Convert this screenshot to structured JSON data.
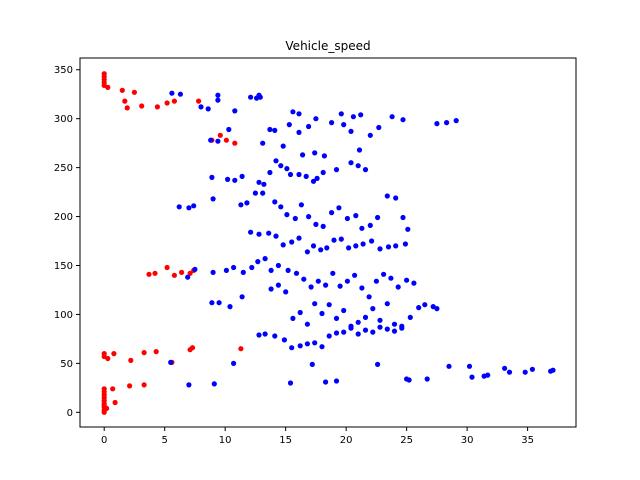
{
  "chart_data": {
    "type": "scatter",
    "title": "Vehicle_speed",
    "xlabel": "",
    "ylabel": "",
    "xlim": [
      -2,
      39
    ],
    "ylim": [
      -15,
      362
    ],
    "xticks": [
      0,
      5,
      10,
      15,
      20,
      25,
      30,
      35
    ],
    "yticks": [
      0,
      50,
      100,
      150,
      200,
      250,
      300,
      350
    ],
    "grid": false,
    "series": [
      {
        "color": "#ff0000",
        "points": [
          [
            0,
            346
          ],
          [
            0,
            343
          ],
          [
            0,
            340
          ],
          [
            0,
            337
          ],
          [
            0,
            334
          ],
          [
            0.3,
            332
          ],
          [
            1.5,
            329
          ],
          [
            2.5,
            327
          ],
          [
            1.7,
            318
          ],
          [
            3.1,
            313
          ],
          [
            1.9,
            311
          ],
          [
            4.4,
            312
          ],
          [
            5.2,
            316
          ],
          [
            5.8,
            318
          ],
          [
            7.8,
            318
          ],
          [
            9.6,
            283
          ],
          [
            8.9,
            278
          ],
          [
            10.1,
            278
          ],
          [
            10.8,
            275
          ],
          [
            3.7,
            141
          ],
          [
            4.2,
            142
          ],
          [
            5.2,
            148
          ],
          [
            5.8,
            140
          ],
          [
            6.4,
            143
          ],
          [
            7.1,
            142
          ],
          [
            7.4,
            145
          ],
          [
            0,
            60
          ],
          [
            0,
            57
          ],
          [
            0.3,
            55
          ],
          [
            0.8,
            60
          ],
          [
            2.2,
            53
          ],
          [
            3.3,
            61
          ],
          [
            4.3,
            62
          ],
          [
            5.6,
            51
          ],
          [
            7.1,
            64
          ],
          [
            7.3,
            66
          ],
          [
            11.3,
            65
          ],
          [
            0,
            24
          ],
          [
            0,
            21
          ],
          [
            0,
            18
          ],
          [
            0,
            15
          ],
          [
            0,
            12
          ],
          [
            0,
            9
          ],
          [
            0,
            7
          ],
          [
            0,
            5
          ],
          [
            0,
            2
          ],
          [
            0,
            0
          ],
          [
            0.2,
            4
          ],
          [
            0.7,
            24
          ],
          [
            0.9,
            10
          ],
          [
            2.1,
            27
          ],
          [
            3.3,
            28
          ]
        ]
      },
      {
        "color": "#0000ff",
        "points": [
          [
            5.6,
            326
          ],
          [
            6.3,
            325
          ],
          [
            8.0,
            312
          ],
          [
            8.6,
            310
          ],
          [
            9.4,
            319
          ],
          [
            9.4,
            324
          ],
          [
            10.8,
            308
          ],
          [
            12.1,
            322
          ],
          [
            12.6,
            321
          ],
          [
            12.8,
            324
          ],
          [
            12.9,
            322
          ],
          [
            15.6,
            307
          ],
          [
            16.1,
            305
          ],
          [
            17.5,
            300
          ],
          [
            19.6,
            305
          ],
          [
            20.6,
            302
          ],
          [
            21.2,
            304
          ],
          [
            23.8,
            302
          ],
          [
            24.7,
            299
          ],
          [
            27.5,
            295
          ],
          [
            28.3,
            296
          ],
          [
            29.1,
            298
          ],
          [
            8.8,
            278
          ],
          [
            9.4,
            277
          ],
          [
            10.3,
            289
          ],
          [
            13.1,
            275
          ],
          [
            13.7,
            289
          ],
          [
            14.1,
            288
          ],
          [
            14.8,
            272
          ],
          [
            15.3,
            294
          ],
          [
            16.1,
            286
          ],
          [
            16.4,
            263
          ],
          [
            16.9,
            292
          ],
          [
            17.4,
            265
          ],
          [
            18.2,
            262
          ],
          [
            18.8,
            296
          ],
          [
            19.8,
            294
          ],
          [
            20.4,
            287
          ],
          [
            21.1,
            268
          ],
          [
            22.0,
            283
          ],
          [
            22.7,
            291
          ],
          [
            8.9,
            240
          ],
          [
            10.2,
            238
          ],
          [
            10.8,
            237
          ],
          [
            11.4,
            241
          ],
          [
            12.8,
            235
          ],
          [
            13.2,
            233
          ],
          [
            13.7,
            245
          ],
          [
            14.2,
            257
          ],
          [
            14.6,
            252
          ],
          [
            15.1,
            249
          ],
          [
            15.4,
            243
          ],
          [
            16.1,
            243
          ],
          [
            16.7,
            241
          ],
          [
            17.3,
            236
          ],
          [
            17.6,
            239
          ],
          [
            18.1,
            245
          ],
          [
            19.2,
            248
          ],
          [
            20.4,
            255
          ],
          [
            21.0,
            252
          ],
          [
            21.6,
            248
          ],
          [
            6.2,
            210
          ],
          [
            7.0,
            209
          ],
          [
            7.4,
            211
          ],
          [
            9.0,
            218
          ],
          [
            11.3,
            212
          ],
          [
            11.8,
            214
          ],
          [
            12.5,
            224
          ],
          [
            13.1,
            224
          ],
          [
            14.1,
            215
          ],
          [
            14.6,
            210
          ],
          [
            15.1,
            202
          ],
          [
            15.8,
            198
          ],
          [
            16.3,
            212
          ],
          [
            16.9,
            200
          ],
          [
            17.5,
            192
          ],
          [
            18.1,
            190
          ],
          [
            18.8,
            204
          ],
          [
            19.4,
            209
          ],
          [
            20.1,
            198
          ],
          [
            20.8,
            201
          ],
          [
            21.3,
            188
          ],
          [
            22.0,
            191
          ],
          [
            22.6,
            199
          ],
          [
            23.4,
            221
          ],
          [
            24.1,
            219
          ],
          [
            24.7,
            199
          ],
          [
            25.1,
            187
          ],
          [
            12.1,
            184
          ],
          [
            12.8,
            182
          ],
          [
            13.6,
            183
          ],
          [
            14.2,
            180
          ],
          [
            14.8,
            171
          ],
          [
            15.5,
            174
          ],
          [
            16.1,
            178
          ],
          [
            16.8,
            164
          ],
          [
            17.3,
            170
          ],
          [
            17.9,
            166
          ],
          [
            18.4,
            168
          ],
          [
            19.0,
            176
          ],
          [
            19.6,
            177
          ],
          [
            20.2,
            168
          ],
          [
            20.8,
            170
          ],
          [
            21.4,
            172
          ],
          [
            22.1,
            175
          ],
          [
            22.8,
            167
          ],
          [
            23.5,
            169
          ],
          [
            24.1,
            170
          ],
          [
            24.9,
            172
          ],
          [
            6.9,
            138
          ],
          [
            7.5,
            146
          ],
          [
            9.0,
            143
          ],
          [
            10.1,
            145
          ],
          [
            10.7,
            148
          ],
          [
            11.5,
            143
          ],
          [
            12.2,
            148
          ],
          [
            12.7,
            154
          ],
          [
            13.3,
            157
          ],
          [
            13.8,
            145
          ],
          [
            14.4,
            150
          ],
          [
            15.2,
            145
          ],
          [
            15.9,
            142
          ],
          [
            16.5,
            136
          ],
          [
            17.1,
            128
          ],
          [
            17.7,
            134
          ],
          [
            18.3,
            130
          ],
          [
            18.9,
            142
          ],
          [
            19.5,
            129
          ],
          [
            20.1,
            134
          ],
          [
            20.7,
            140
          ],
          [
            21.3,
            127
          ],
          [
            21.9,
            118
          ],
          [
            22.5,
            134
          ],
          [
            23.1,
            141
          ],
          [
            23.7,
            137
          ],
          [
            24.3,
            128
          ],
          [
            25.0,
            135
          ],
          [
            25.6,
            132
          ],
          [
            8.9,
            112
          ],
          [
            9.5,
            112
          ],
          [
            10.4,
            108
          ],
          [
            11.4,
            118
          ],
          [
            13.8,
            126
          ],
          [
            14.4,
            130
          ],
          [
            15.0,
            123
          ],
          [
            15.6,
            96
          ],
          [
            16.2,
            102
          ],
          [
            16.8,
            90
          ],
          [
            17.4,
            111
          ],
          [
            18.0,
            101
          ],
          [
            18.6,
            110
          ],
          [
            19.2,
            96
          ],
          [
            19.8,
            104
          ],
          [
            20.4,
            88
          ],
          [
            21.0,
            92
          ],
          [
            21.6,
            97
          ],
          [
            22.2,
            106
          ],
          [
            22.8,
            94
          ],
          [
            23.4,
            111
          ],
          [
            24.0,
            90
          ],
          [
            24.6,
            86
          ],
          [
            25.3,
            97
          ],
          [
            26.0,
            107
          ],
          [
            26.5,
            110
          ],
          [
            27.2,
            108
          ],
          [
            27.5,
            106
          ],
          [
            12.8,
            79
          ],
          [
            13.3,
            80
          ],
          [
            14.1,
            78
          ],
          [
            14.9,
            74
          ],
          [
            15.5,
            66
          ],
          [
            16.2,
            68
          ],
          [
            16.8,
            70
          ],
          [
            17.4,
            71
          ],
          [
            18.0,
            67
          ],
          [
            18.6,
            78
          ],
          [
            19.2,
            81
          ],
          [
            19.8,
            82
          ],
          [
            20.4,
            86
          ],
          [
            21.0,
            80
          ],
          [
            21.6,
            84
          ],
          [
            22.2,
            82
          ],
          [
            22.8,
            87
          ],
          [
            23.4,
            85
          ],
          [
            24.0,
            83
          ],
          [
            24.6,
            88
          ],
          [
            5.5,
            51
          ],
          [
            7.0,
            28
          ],
          [
            9.1,
            29
          ],
          [
            10.7,
            50
          ],
          [
            15.4,
            30
          ],
          [
            17.2,
            49
          ],
          [
            18.3,
            31
          ],
          [
            19.2,
            32
          ],
          [
            22.6,
            49
          ],
          [
            25.0,
            34
          ],
          [
            25.2,
            33
          ],
          [
            26.7,
            34
          ],
          [
            28.5,
            47
          ],
          [
            30.2,
            47
          ],
          [
            30.4,
            36
          ],
          [
            31.4,
            37
          ],
          [
            31.7,
            38
          ],
          [
            33.1,
            45
          ],
          [
            33.5,
            41
          ],
          [
            34.8,
            41
          ],
          [
            35.4,
            44
          ],
          [
            36.9,
            42
          ],
          [
            37.1,
            43
          ]
        ]
      }
    ]
  }
}
